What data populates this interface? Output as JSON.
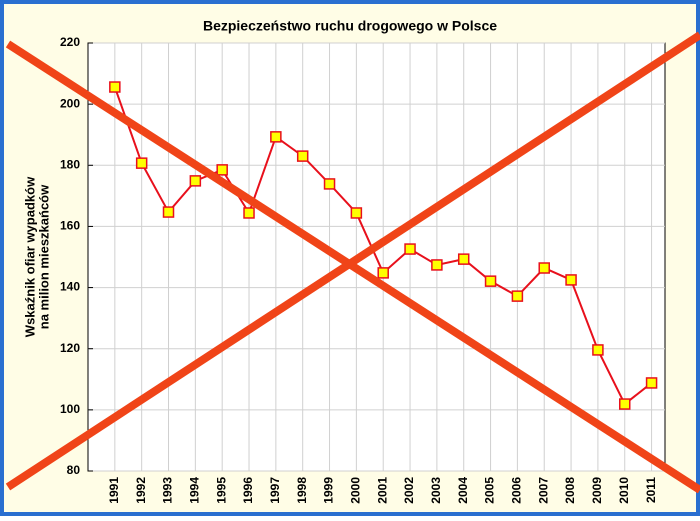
{
  "chart_data": {
    "type": "line",
    "title": "Bezpieczeństwo ruchu drogowego w Polsce",
    "y_label": [
      "Wskaźnik ofiar wypadków",
      "na milion mieszkańców"
    ],
    "categories": [
      "1991",
      "1992",
      "1993",
      "1994",
      "1995",
      "1996",
      "1997",
      "1998",
      "1999",
      "2000",
      "2001",
      "2002",
      "2003",
      "2004",
      "2005",
      "2006",
      "2007",
      "2008",
      "2009",
      "2010",
      "2011"
    ],
    "values": [
      205.6,
      180.7,
      164.7,
      174.9,
      178.5,
      164.4,
      189.3,
      183.0,
      173.9,
      164.4,
      144.8,
      152.6,
      147.4,
      149.3,
      142.1,
      137.2,
      146.4,
      142.5,
      119.6,
      101.9,
      108.8
    ],
    "color": "#e8101c",
    "marker_color": "#ffff00",
    "ylim": [
      80,
      220
    ],
    "yticks": [
      80,
      100,
      120,
      140,
      160,
      180,
      200,
      220
    ],
    "grid": true
  }
}
